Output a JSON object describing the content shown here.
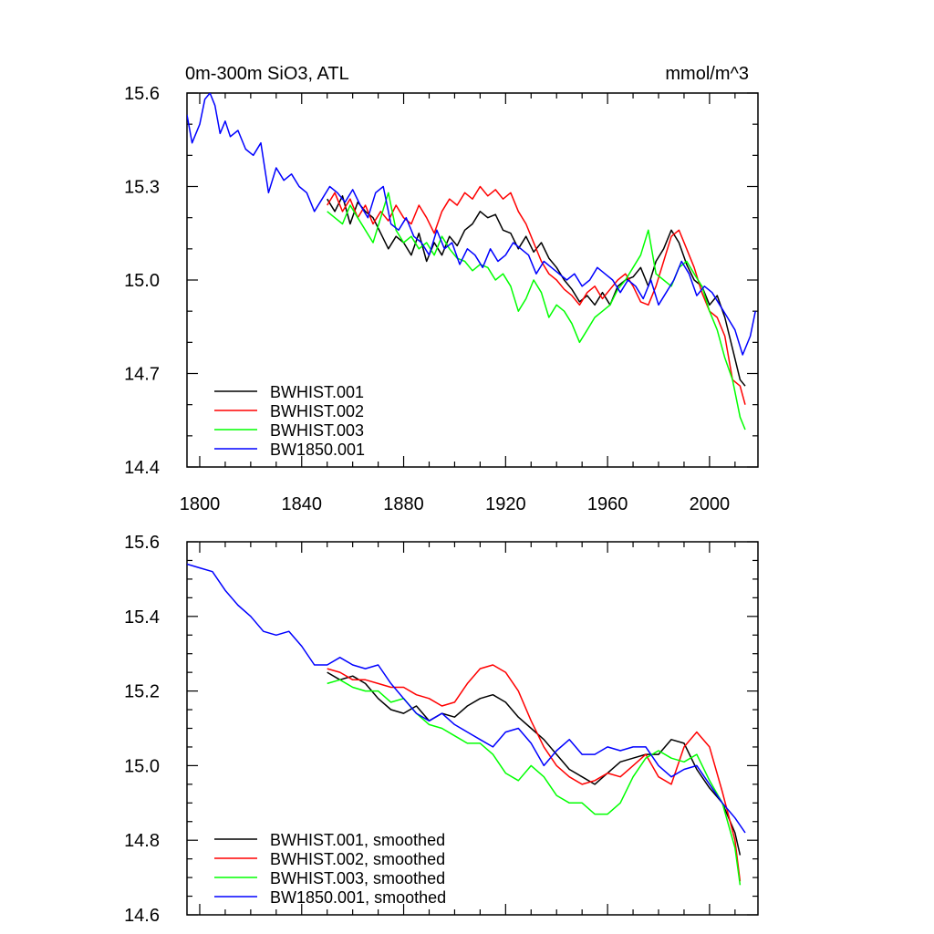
{
  "chart_data": [
    {
      "type": "line",
      "title": "0m-300m SiO3, ATL",
      "units": "mmol/m^3",
      "xlabel": "",
      "ylabel": "",
      "xlim": [
        1795,
        2019
      ],
      "ylim": [
        14.4,
        15.6
      ],
      "x_ticks": [
        1800,
        1840,
        1880,
        1920,
        1960,
        2000
      ],
      "y_ticks": [
        14.4,
        14.7,
        15.0,
        15.3,
        15.6
      ],
      "x_tick_labels": [
        "1800",
        "1840",
        "1880",
        "1920",
        "1960",
        "2000"
      ],
      "y_tick_labels": [
        "14.4",
        "14.7",
        "15.0",
        "15.3",
        "15.6"
      ],
      "legend_position": "bottom-left",
      "series": [
        {
          "name": "BWHIST.001",
          "color": "#000000",
          "x": [
            1850,
            1853,
            1856,
            1859,
            1862,
            1865,
            1868,
            1871,
            1874,
            1877,
            1880,
            1883,
            1886,
            1889,
            1892,
            1895,
            1898,
            1901,
            1904,
            1907,
            1910,
            1913,
            1916,
            1919,
            1922,
            1925,
            1928,
            1931,
            1934,
            1937,
            1940,
            1943,
            1946,
            1949,
            1952,
            1955,
            1958,
            1961,
            1964,
            1967,
            1970,
            1973,
            1976,
            1979,
            1982,
            1985,
            1988,
            1991,
            1994,
            1997,
            2000,
            2003,
            2006,
            2009,
            2012,
            2014
          ],
          "y": [
            15.26,
            15.22,
            15.27,
            15.18,
            15.25,
            15.22,
            15.2,
            15.15,
            15.1,
            15.14,
            15.12,
            15.08,
            15.15,
            15.06,
            15.12,
            15.08,
            15.14,
            15.11,
            15.16,
            15.18,
            15.22,
            15.2,
            15.21,
            15.16,
            15.15,
            15.1,
            15.14,
            15.09,
            15.12,
            15.07,
            15.04,
            15.0,
            14.97,
            14.93,
            14.95,
            14.92,
            14.96,
            14.92,
            14.98,
            15.0,
            15.01,
            15.04,
            14.98,
            15.06,
            15.1,
            15.16,
            15.12,
            15.05,
            15.0,
            14.98,
            14.92,
            14.95,
            14.88,
            14.78,
            14.68,
            14.66
          ]
        },
        {
          "name": "BWHIST.002",
          "color": "#ff0000",
          "x": [
            1850,
            1853,
            1856,
            1859,
            1862,
            1865,
            1868,
            1871,
            1874,
            1877,
            1880,
            1883,
            1886,
            1889,
            1892,
            1895,
            1898,
            1901,
            1904,
            1907,
            1910,
            1913,
            1916,
            1919,
            1922,
            1925,
            1928,
            1931,
            1934,
            1937,
            1940,
            1943,
            1946,
            1949,
            1952,
            1955,
            1958,
            1961,
            1964,
            1967,
            1970,
            1973,
            1976,
            1979,
            1982,
            1985,
            1988,
            1991,
            1994,
            1997,
            2000,
            2003,
            2006,
            2009,
            2012,
            2014
          ],
          "y": [
            15.24,
            15.28,
            15.22,
            15.26,
            15.2,
            15.24,
            15.18,
            15.22,
            15.19,
            15.24,
            15.2,
            15.18,
            15.24,
            15.2,
            15.15,
            15.22,
            15.26,
            15.24,
            15.28,
            15.26,
            15.3,
            15.27,
            15.29,
            15.26,
            15.28,
            15.22,
            15.18,
            15.12,
            15.06,
            15.02,
            15.0,
            14.97,
            14.95,
            14.92,
            14.96,
            14.98,
            14.94,
            14.97,
            15.0,
            15.02,
            14.98,
            14.93,
            14.92,
            14.98,
            15.06,
            15.14,
            15.16,
            15.1,
            15.04,
            14.96,
            14.9,
            14.88,
            14.82,
            14.68,
            14.66,
            14.6
          ]
        },
        {
          "name": "BWHIST.003",
          "color": "#00ff00",
          "x": [
            1850,
            1853,
            1856,
            1859,
            1862,
            1865,
            1868,
            1871,
            1874,
            1877,
            1880,
            1883,
            1886,
            1889,
            1892,
            1895,
            1898,
            1901,
            1904,
            1907,
            1910,
            1913,
            1916,
            1919,
            1922,
            1925,
            1928,
            1931,
            1934,
            1937,
            1940,
            1943,
            1946,
            1949,
            1952,
            1955,
            1958,
            1961,
            1964,
            1967,
            1970,
            1973,
            1976,
            1979,
            1982,
            1985,
            1988,
            1991,
            1994,
            1997,
            2000,
            2003,
            2006,
            2009,
            2012,
            2014
          ],
          "y": [
            15.22,
            15.2,
            15.18,
            15.24,
            15.2,
            15.16,
            15.12,
            15.2,
            15.28,
            15.16,
            15.12,
            15.14,
            15.1,
            15.12,
            15.08,
            15.14,
            15.1,
            15.07,
            15.06,
            15.03,
            15.05,
            15.04,
            15.0,
            15.02,
            14.98,
            14.9,
            14.94,
            15.0,
            14.96,
            14.88,
            14.92,
            14.9,
            14.86,
            14.8,
            14.84,
            14.88,
            14.9,
            14.92,
            14.97,
            15.0,
            15.04,
            15.08,
            15.16,
            15.02,
            15.0,
            14.98,
            15.04,
            15.06,
            15.02,
            14.98,
            14.9,
            14.84,
            14.75,
            14.68,
            14.56,
            14.52
          ]
        },
        {
          "name": "BW1850.001",
          "color": "#0000ff",
          "x": [
            1795,
            1797,
            1800,
            1802,
            1804,
            1806,
            1808,
            1810,
            1812,
            1815,
            1818,
            1821,
            1824,
            1827,
            1830,
            1833,
            1836,
            1839,
            1842,
            1845,
            1848,
            1851,
            1854,
            1857,
            1860,
            1863,
            1866,
            1869,
            1872,
            1875,
            1878,
            1881,
            1884,
            1887,
            1890,
            1893,
            1896,
            1899,
            1902,
            1905,
            1908,
            1911,
            1914,
            1917,
            1920,
            1923,
            1926,
            1929,
            1932,
            1935,
            1938,
            1941,
            1944,
            1947,
            1950,
            1953,
            1956,
            1959,
            1962,
            1965,
            1968,
            1971,
            1974,
            1977,
            1980,
            1983,
            1986,
            1989,
            1992,
            1995,
            1998,
            2001,
            2004,
            2007,
            2010,
            2013,
            2016,
            2018
          ],
          "y": [
            15.53,
            15.44,
            15.5,
            15.58,
            15.6,
            15.56,
            15.47,
            15.51,
            15.46,
            15.48,
            15.42,
            15.4,
            15.44,
            15.28,
            15.36,
            15.32,
            15.34,
            15.3,
            15.28,
            15.22,
            15.26,
            15.3,
            15.28,
            15.25,
            15.29,
            15.24,
            15.2,
            15.28,
            15.3,
            15.18,
            15.16,
            15.2,
            15.14,
            15.12,
            15.08,
            15.16,
            15.1,
            15.12,
            15.05,
            15.1,
            15.08,
            15.04,
            15.1,
            15.06,
            15.08,
            15.12,
            15.1,
            15.08,
            15.02,
            15.06,
            15.04,
            15.02,
            15.0,
            15.02,
            14.98,
            15.0,
            15.04,
            15.02,
            15.0,
            14.96,
            15.0,
            14.98,
            14.94,
            15.0,
            14.92,
            14.96,
            15.0,
            15.06,
            15.02,
            14.95,
            14.98,
            14.96,
            14.92,
            14.88,
            14.84,
            14.76,
            14.82,
            14.9
          ]
        }
      ]
    },
    {
      "type": "line",
      "title": "",
      "xlabel": "",
      "ylabel": "",
      "xlim": [
        1795,
        2019
      ],
      "ylim": [
        14.6,
        15.6
      ],
      "x_ticks": [
        1800,
        1840,
        1880,
        1920,
        1960,
        2000
      ],
      "y_ticks": [
        14.6,
        14.8,
        15.0,
        15.2,
        15.4,
        15.6
      ],
      "y_tick_labels": [
        "14.6",
        "14.8",
        "15.0",
        "15.2",
        "15.4",
        "15.6"
      ],
      "legend_position": "bottom-left",
      "series": [
        {
          "name": "BWHIST.001, smoothed",
          "color": "#000000",
          "x": [
            1850,
            1855,
            1860,
            1865,
            1870,
            1875,
            1880,
            1885,
            1890,
            1895,
            1900,
            1905,
            1910,
            1915,
            1920,
            1925,
            1930,
            1935,
            1940,
            1945,
            1950,
            1955,
            1960,
            1965,
            1970,
            1975,
            1980,
            1985,
            1990,
            1995,
            2000,
            2005,
            2010,
            2012
          ],
          "y": [
            15.25,
            15.23,
            15.24,
            15.22,
            15.18,
            15.15,
            15.14,
            15.16,
            15.12,
            15.14,
            15.13,
            15.16,
            15.18,
            15.19,
            15.17,
            15.13,
            15.1,
            15.07,
            15.03,
            14.99,
            14.97,
            14.95,
            14.98,
            15.01,
            15.02,
            15.03,
            15.03,
            15.07,
            15.06,
            14.99,
            14.94,
            14.9,
            14.82,
            14.76
          ]
        },
        {
          "name": "BWHIST.002, smoothed",
          "color": "#ff0000",
          "x": [
            1850,
            1855,
            1860,
            1865,
            1870,
            1875,
            1880,
            1885,
            1890,
            1895,
            1900,
            1905,
            1910,
            1915,
            1920,
            1925,
            1930,
            1935,
            1940,
            1945,
            1950,
            1955,
            1960,
            1965,
            1970,
            1975,
            1980,
            1985,
            1990,
            1995,
            2000,
            2005,
            2010,
            2012
          ],
          "y": [
            15.26,
            15.25,
            15.23,
            15.23,
            15.22,
            15.21,
            15.21,
            15.19,
            15.18,
            15.16,
            15.17,
            15.22,
            15.26,
            15.27,
            15.25,
            15.2,
            15.12,
            15.05,
            15.0,
            14.97,
            14.95,
            14.96,
            14.98,
            14.97,
            15.0,
            15.03,
            14.97,
            14.95,
            15.05,
            15.09,
            15.05,
            14.93,
            14.8,
            14.69
          ]
        },
        {
          "name": "BWHIST.003, smoothed",
          "color": "#00ff00",
          "x": [
            1850,
            1855,
            1860,
            1865,
            1870,
            1875,
            1880,
            1885,
            1890,
            1895,
            1900,
            1905,
            1910,
            1915,
            1920,
            1925,
            1930,
            1935,
            1940,
            1945,
            1950,
            1955,
            1960,
            1965,
            1970,
            1975,
            1980,
            1985,
            1990,
            1995,
            2000,
            2005,
            2010,
            2012
          ],
          "y": [
            15.22,
            15.23,
            15.21,
            15.2,
            15.2,
            15.17,
            15.18,
            15.14,
            15.11,
            15.1,
            15.08,
            15.06,
            15.06,
            15.03,
            14.98,
            14.96,
            15.0,
            14.97,
            14.92,
            14.9,
            14.9,
            14.87,
            14.87,
            14.9,
            14.97,
            15.02,
            15.04,
            15.02,
            15.01,
            15.03,
            14.96,
            14.9,
            14.78,
            14.68
          ]
        },
        {
          "name": "BW1850.001, smoothed",
          "color": "#0000ff",
          "x": [
            1795,
            1800,
            1805,
            1810,
            1815,
            1820,
            1825,
            1830,
            1835,
            1840,
            1845,
            1850,
            1855,
            1860,
            1865,
            1870,
            1875,
            1880,
            1885,
            1890,
            1895,
            1900,
            1905,
            1910,
            1915,
            1920,
            1925,
            1930,
            1935,
            1940,
            1945,
            1950,
            1955,
            1960,
            1965,
            1970,
            1975,
            1980,
            1985,
            1990,
            1995,
            2000,
            2005,
            2010,
            2014
          ],
          "y": [
            15.54,
            15.53,
            15.52,
            15.47,
            15.43,
            15.4,
            15.36,
            15.35,
            15.36,
            15.32,
            15.27,
            15.27,
            15.29,
            15.27,
            15.26,
            15.27,
            15.22,
            15.18,
            15.14,
            15.12,
            15.14,
            15.11,
            15.09,
            15.07,
            15.05,
            15.09,
            15.1,
            15.06,
            15.0,
            15.04,
            15.07,
            15.03,
            15.03,
            15.05,
            15.04,
            15.05,
            15.05,
            15.0,
            14.97,
            14.99,
            15.0,
            14.95,
            14.9,
            14.86,
            14.82
          ]
        }
      ]
    }
  ]
}
